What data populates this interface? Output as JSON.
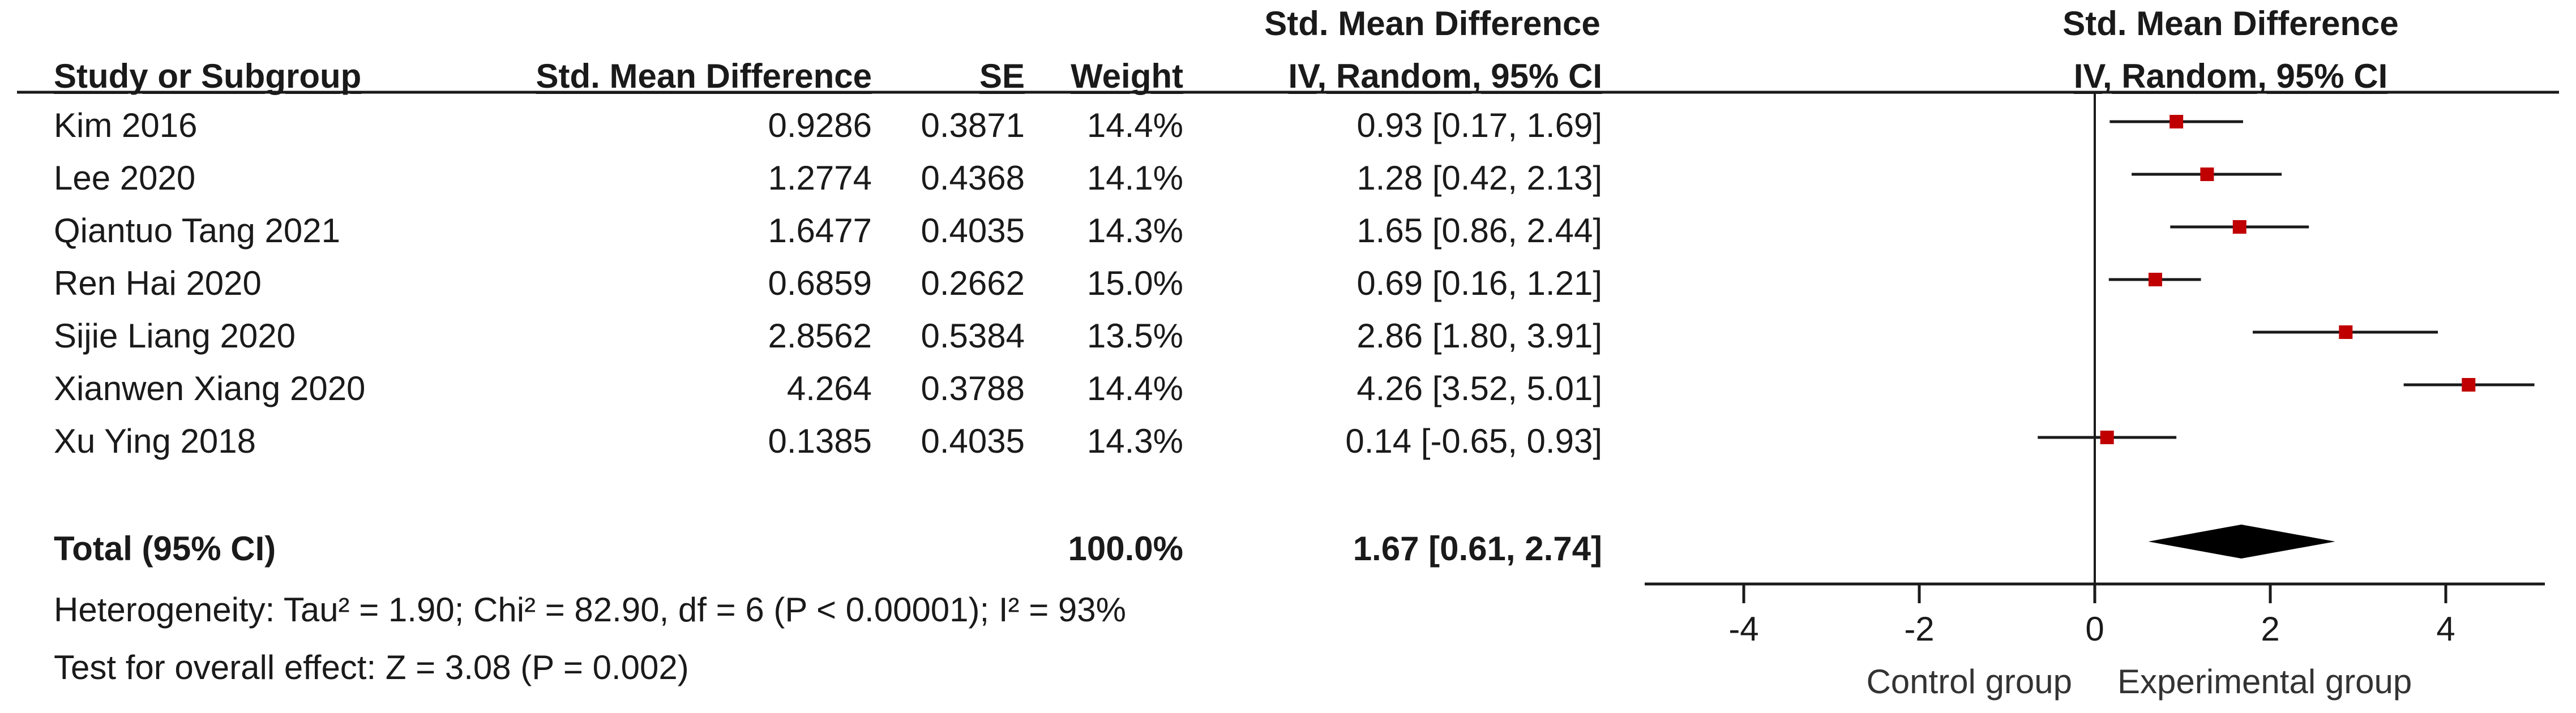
{
  "header": {
    "super_center": "Std. Mean Difference",
    "super_plot": "Std. Mean Difference",
    "study_col": "Study or Subgroup",
    "smd_col": "Std. Mean Difference",
    "se_col": "SE",
    "weight_col": "Weight",
    "ci_col": "IV, Random, 95% CI",
    "plot_col": "IV, Random, 95% CI"
  },
  "studies": [
    {
      "name": "Kim 2016",
      "smd": "0.9286",
      "se": "0.3871",
      "weight": "14.4%",
      "ci": "0.93 [0.17, 1.69]"
    },
    {
      "name": "Lee 2020",
      "smd": "1.2774",
      "se": "0.4368",
      "weight": "14.1%",
      "ci": "1.28 [0.42, 2.13]"
    },
    {
      "name": "Qiantuo Tang 2021",
      "smd": "1.6477",
      "se": "0.4035",
      "weight": "14.3%",
      "ci": "1.65 [0.86, 2.44]"
    },
    {
      "name": "Ren Hai 2020",
      "smd": "0.6859",
      "se": "0.2662",
      "weight": "15.0%",
      "ci": "0.69 [0.16, 1.21]"
    },
    {
      "name": "Sijie Liang 2020",
      "smd": "2.8562",
      "se": "0.5384",
      "weight": "13.5%",
      "ci": "2.86 [1.80, 3.91]"
    },
    {
      "name": "Xianwen Xiang 2020",
      "smd": "4.264",
      "se": "0.3788",
      "weight": "14.4%",
      "ci": "4.26 [3.52, 5.01]"
    },
    {
      "name": "Xu Ying 2018",
      "smd": "0.1385",
      "se": "0.4035",
      "weight": "14.3%",
      "ci": "0.14 [-0.65, 0.93]"
    }
  ],
  "total": {
    "label": "Total (95% CI)",
    "weight": "100.0%",
    "ci": "1.67 [0.61, 2.74]"
  },
  "footnotes": {
    "heterogeneity": "Heterogeneity: Tau² = 1.90; Chi² = 82.90, df = 6 (P < 0.00001); I² = 93%",
    "overall": "Test for overall effect: Z = 3.08 (P = 0.002)"
  },
  "chart_data": {
    "type": "scatter",
    "subtype": "forest",
    "xlim": [
      -5,
      5
    ],
    "xticks": [
      -4,
      -2,
      0,
      2,
      4
    ],
    "xtick_labels": [
      "-4",
      "-2",
      "0",
      "2",
      "4"
    ],
    "reference_line": 0,
    "left_label": "Control group",
    "right_label": "Experimental group",
    "marker_color": "#c00000",
    "studies": [
      {
        "estimate": 0.93,
        "lower": 0.17,
        "upper": 1.69
      },
      {
        "estimate": 1.28,
        "lower": 0.42,
        "upper": 2.13
      },
      {
        "estimate": 1.65,
        "lower": 0.86,
        "upper": 2.44
      },
      {
        "estimate": 0.69,
        "lower": 0.16,
        "upper": 1.21
      },
      {
        "estimate": 2.86,
        "lower": 1.8,
        "upper": 3.91
      },
      {
        "estimate": 4.26,
        "lower": 3.52,
        "upper": 5.01
      },
      {
        "estimate": 0.14,
        "lower": -0.65,
        "upper": 0.93
      }
    ],
    "overall": {
      "estimate": 1.67,
      "lower": 0.61,
      "upper": 2.74
    }
  }
}
